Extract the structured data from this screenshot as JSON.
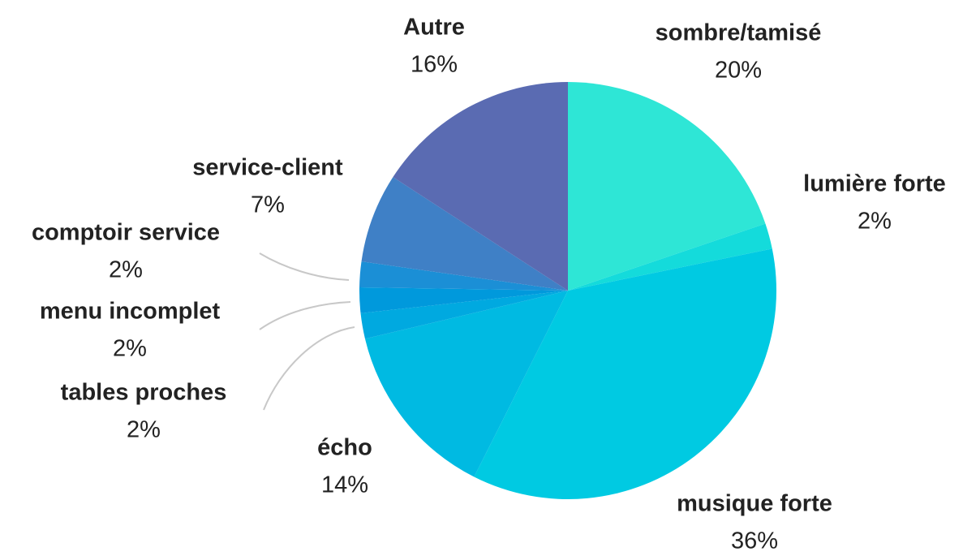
{
  "chart_data": {
    "type": "pie",
    "categories": [
      "sombre/tamisé",
      "lumière forte",
      "musique forte",
      "écho",
      "tables proches",
      "menu incomplet",
      "comptoir service",
      "service-client",
      "Autre"
    ],
    "values": [
      20,
      2,
      36,
      14,
      2,
      2,
      2,
      7,
      16
    ],
    "value_labels": [
      "20%",
      "2%",
      "36%",
      "14%",
      "2%",
      "2%",
      "2%",
      "7%",
      "16%"
    ],
    "colors": [
      "#2ee6d6",
      "#14dbdb",
      "#00cae2",
      "#00bae2",
      "#00a9e0",
      "#0099dc",
      "#1b8fd6",
      "#3f80c6",
      "#5a6bb2"
    ]
  }
}
